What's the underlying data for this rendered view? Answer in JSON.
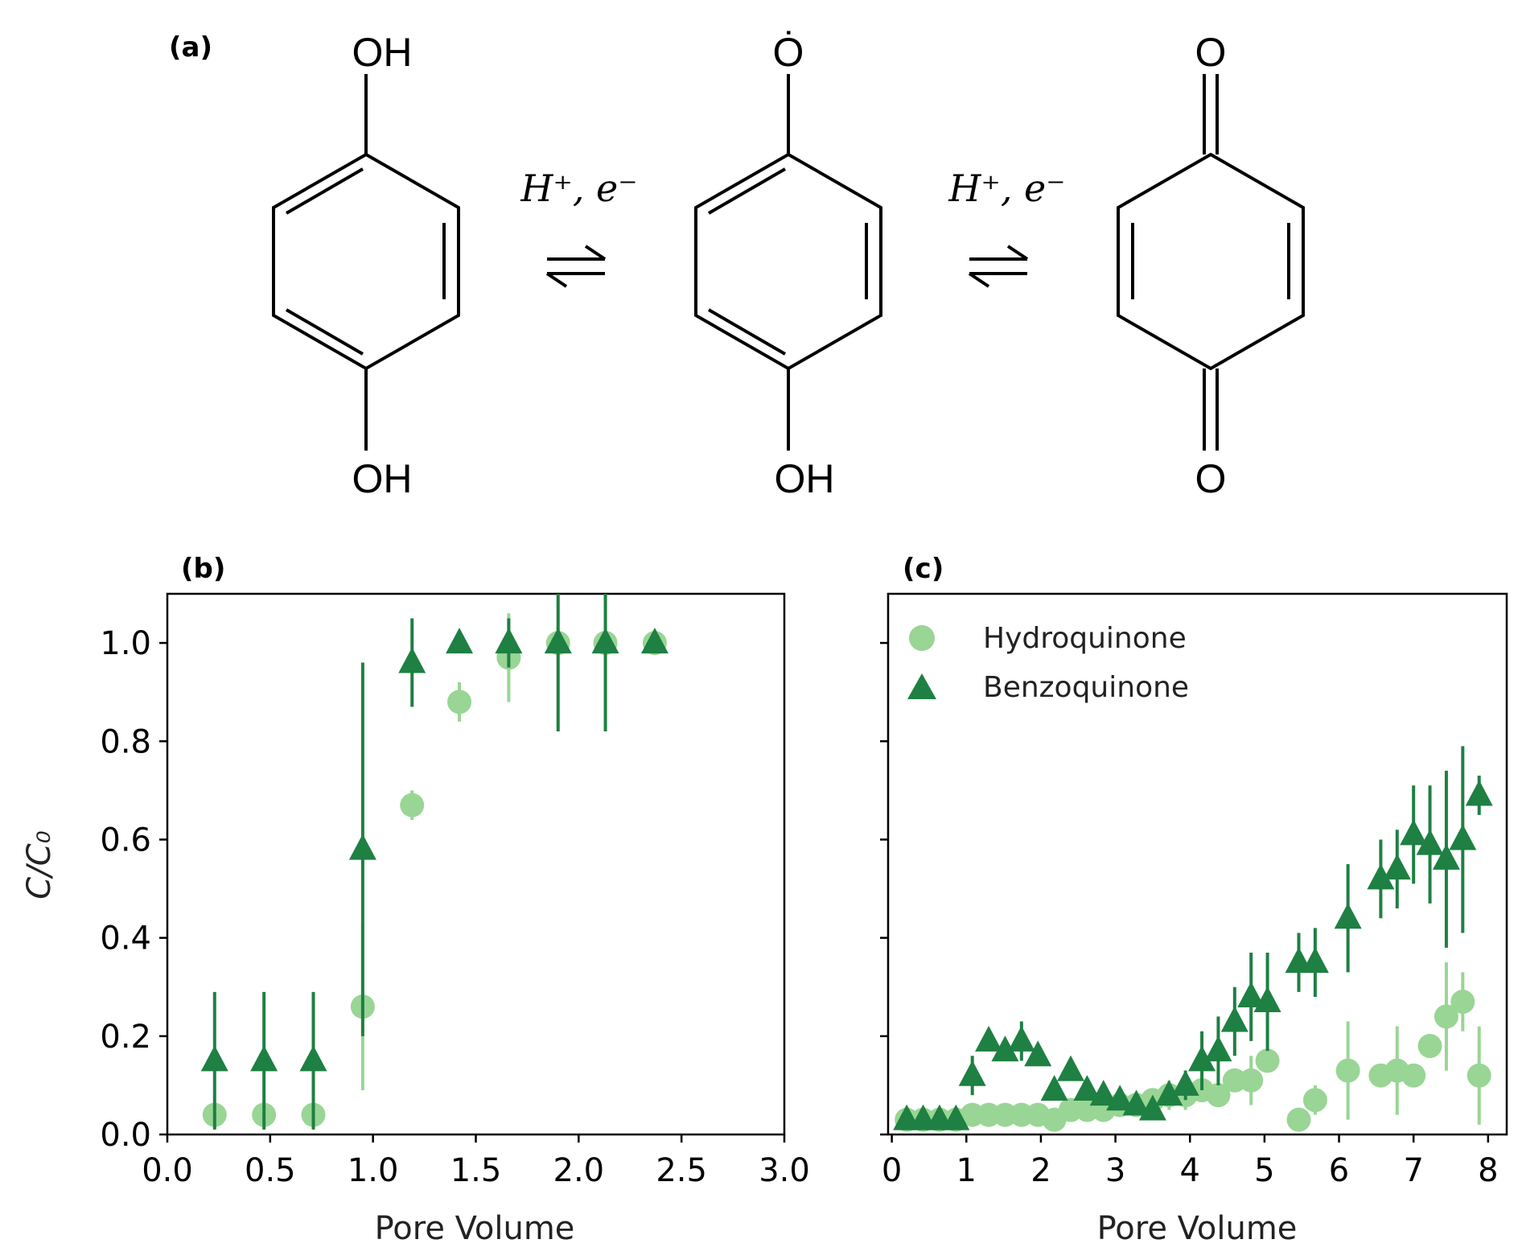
{
  "panel_a": {
    "label": "(a)",
    "molecules": [
      {
        "top": "OH",
        "bottom": "OH"
      },
      {
        "top": "Ȯ",
        "bottom": "OH"
      },
      {
        "top": "O",
        "bottom": "O"
      }
    ],
    "arrow_labels": [
      "H⁺, e⁻",
      "H⁺, e⁻"
    ]
  },
  "colors": {
    "hydroquinone": "#99d595",
    "benzoquinone": "#1e8042"
  },
  "chart_data": [
    {
      "panel": "(b)",
      "type": "scatter",
      "xlabel": "Pore Volume",
      "ylabel": "C/C₀",
      "xlim": [
        0.0,
        3.0
      ],
      "ylim": [
        0.0,
        1.1
      ],
      "xticks": [
        "0.0",
        "0.5",
        "1.0",
        "1.5",
        "2.0",
        "2.5",
        "3.0"
      ],
      "yticks": [
        "0.0",
        "0.2",
        "0.4",
        "0.6",
        "0.8",
        "1.0"
      ],
      "series": [
        {
          "name": "Hydroquinone",
          "marker": "circle",
          "x": [
            0.23,
            0.47,
            0.71,
            0.95,
            1.19,
            1.42,
            1.66,
            1.9,
            2.13,
            2.37
          ],
          "y": [
            0.04,
            0.04,
            0.04,
            0.26,
            0.67,
            0.88,
            0.97,
            1.0,
            1.0,
            1.0
          ],
          "err": [
            0.0,
            0.0,
            0.0,
            0.17,
            0.03,
            0.04,
            0.09,
            0.0,
            0.17,
            0.0
          ]
        },
        {
          "name": "Benzoquinone",
          "marker": "triangle",
          "x": [
            0.23,
            0.47,
            0.71,
            0.95,
            1.19,
            1.42,
            1.66,
            1.9,
            2.13,
            2.37
          ],
          "y": [
            0.15,
            0.15,
            0.15,
            0.58,
            0.96,
            1.0,
            1.0,
            1.0,
            1.0,
            1.0
          ],
          "err": [
            0.14,
            0.14,
            0.14,
            0.38,
            0.09,
            0.0,
            0.05,
            0.18,
            0.18,
            0.0
          ]
        }
      ]
    },
    {
      "panel": "(c)",
      "type": "scatter",
      "xlabel": "Pore Volume",
      "xlim": [
        -0.05,
        8.25
      ],
      "ylim": [
        0.0,
        1.1
      ],
      "xticks": [
        "0",
        "1",
        "2",
        "3",
        "4",
        "5",
        "6",
        "7",
        "8"
      ],
      "legend": "top-left",
      "series": [
        {
          "name": "Hydroquinone",
          "marker": "circle",
          "x": [
            0.2,
            0.42,
            0.64,
            0.86,
            1.08,
            1.3,
            1.52,
            1.74,
            1.96,
            2.18,
            2.4,
            2.62,
            2.84,
            3.06,
            3.28,
            3.5,
            3.72,
            3.94,
            4.16,
            4.38,
            4.6,
            4.82,
            5.04,
            5.46,
            5.68,
            6.12,
            6.56,
            6.78,
            7.0,
            7.22,
            7.44,
            7.66,
            7.88
          ],
          "y": [
            0.03,
            0.03,
            0.03,
            0.03,
            0.04,
            0.04,
            0.04,
            0.04,
            0.04,
            0.03,
            0.05,
            0.05,
            0.05,
            0.06,
            0.06,
            0.07,
            0.08,
            0.08,
            0.09,
            0.08,
            0.11,
            0.11,
            0.15,
            0.03,
            0.07,
            0.13,
            0.12,
            0.13,
            0.12,
            0.18,
            0.24,
            0.27,
            0.12
          ],
          "err": [
            0.0,
            0.0,
            0.0,
            0.0,
            0.0,
            0.0,
            0.0,
            0.0,
            0.0,
            0.0,
            0.0,
            0.0,
            0.0,
            0.0,
            0.0,
            0.02,
            0.03,
            0.03,
            0.0,
            0.0,
            0.0,
            0.05,
            0.0,
            0.0,
            0.03,
            0.1,
            0.0,
            0.09,
            0.0,
            0.0,
            0.11,
            0.06,
            0.1
          ]
        },
        {
          "name": "Benzoquinone",
          "marker": "triangle",
          "x": [
            0.2,
            0.42,
            0.64,
            0.86,
            1.08,
            1.3,
            1.52,
            1.74,
            1.96,
            2.18,
            2.4,
            2.62,
            2.84,
            3.06,
            3.28,
            3.5,
            3.72,
            3.94,
            4.16,
            4.38,
            4.6,
            4.82,
            5.04,
            5.46,
            5.68,
            6.12,
            6.56,
            6.78,
            7.0,
            7.22,
            7.44,
            7.66,
            7.88
          ],
          "y": [
            0.03,
            0.03,
            0.03,
            0.03,
            0.12,
            0.19,
            0.17,
            0.19,
            0.16,
            0.09,
            0.13,
            0.09,
            0.08,
            0.07,
            0.06,
            0.05,
            0.08,
            0.1,
            0.15,
            0.17,
            0.23,
            0.28,
            0.27,
            0.35,
            0.35,
            0.44,
            0.52,
            0.54,
            0.61,
            0.59,
            0.56,
            0.6,
            0.69
          ],
          "err": [
            0.0,
            0.0,
            0.0,
            0.0,
            0.04,
            0.0,
            0.0,
            0.04,
            0.0,
            0.0,
            0.0,
            0.0,
            0.0,
            0.0,
            0.0,
            0.0,
            0.0,
            0.03,
            0.06,
            0.07,
            0.07,
            0.09,
            0.1,
            0.06,
            0.07,
            0.11,
            0.08,
            0.08,
            0.1,
            0.12,
            0.18,
            0.19,
            0.04
          ]
        }
      ]
    }
  ]
}
